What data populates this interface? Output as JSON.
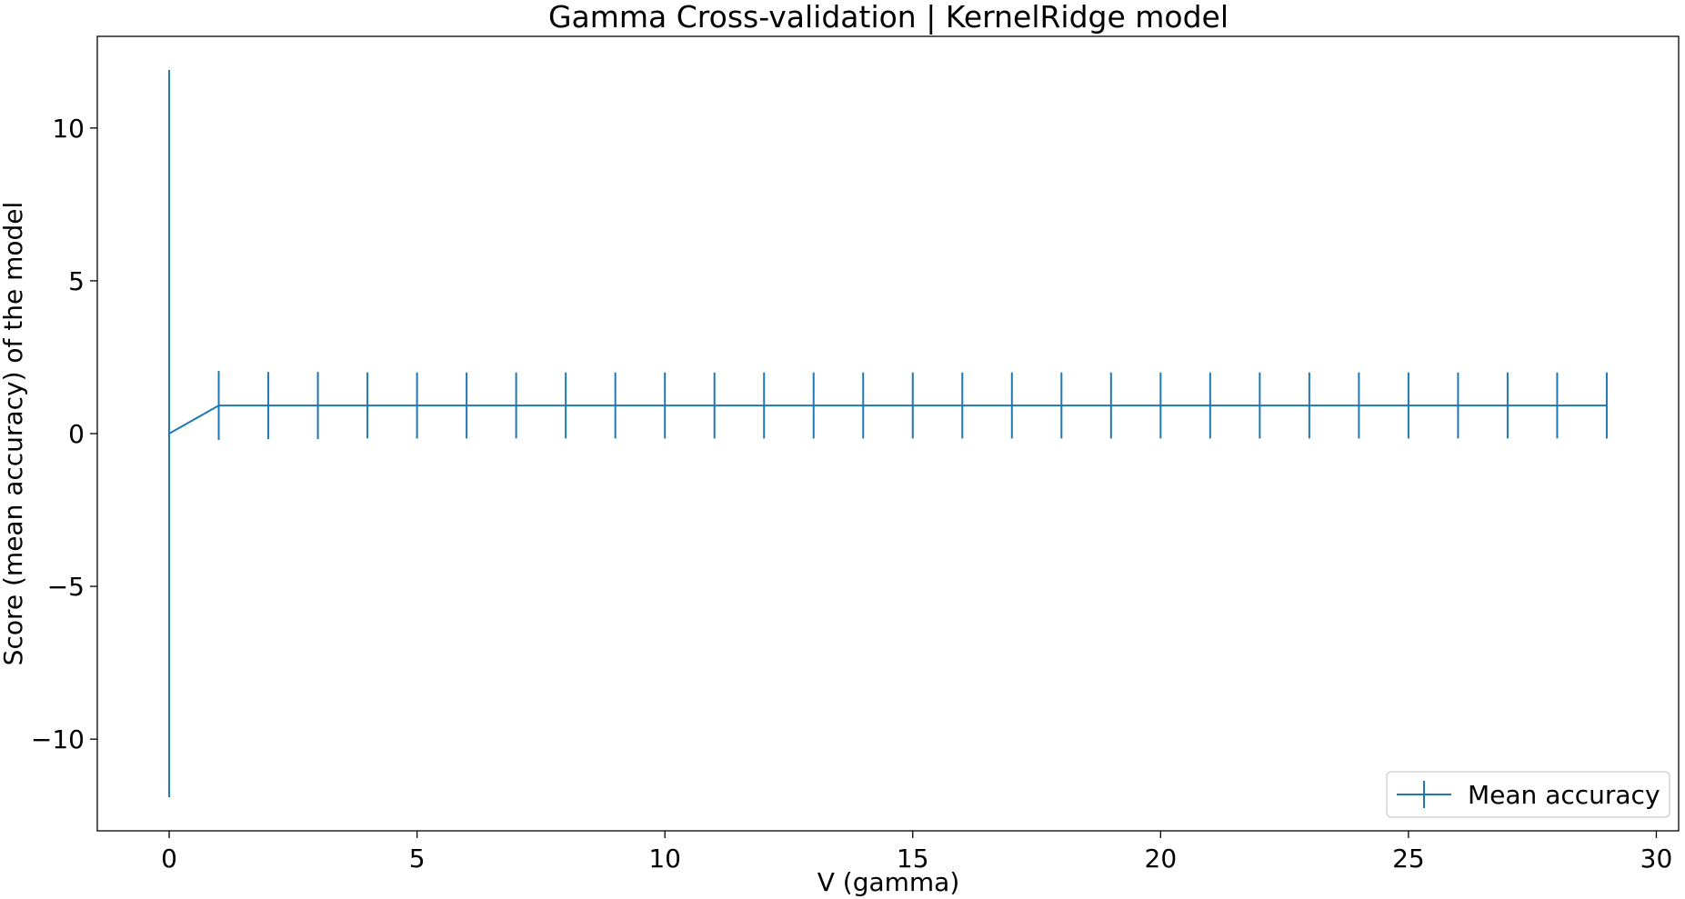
{
  "chart_data": {
    "type": "line",
    "title": "Gamma Cross-validation | KernelRidge model",
    "xlabel": "V (gamma)",
    "ylabel": "Score (mean accuracy) of the model",
    "xlim": [
      -1.45,
      30.45
    ],
    "ylim": [
      -13.0,
      13.0
    ],
    "x_ticks": [
      0,
      5,
      10,
      15,
      20,
      25,
      30
    ],
    "x_tick_labels": [
      "0",
      "5",
      "10",
      "15",
      "20",
      "25",
      "30"
    ],
    "y_ticks": [
      -10,
      -5,
      0,
      5,
      10
    ],
    "y_tick_labels": [
      "−10",
      "−5",
      "0",
      "5",
      "10"
    ],
    "grid": false,
    "legend_position": "lower-right",
    "series": [
      {
        "name": "Mean accuracy",
        "color": "#1f77b4",
        "marker": "errorbar",
        "x": [
          0,
          1,
          2,
          3,
          4,
          5,
          6,
          7,
          8,
          9,
          10,
          11,
          12,
          13,
          14,
          15,
          16,
          17,
          18,
          19,
          20,
          21,
          22,
          23,
          24,
          25,
          26,
          27,
          28,
          29
        ],
        "y": [
          0.0,
          0.92,
          0.92,
          0.92,
          0.92,
          0.92,
          0.92,
          0.92,
          0.92,
          0.92,
          0.92,
          0.92,
          0.92,
          0.92,
          0.92,
          0.92,
          0.92,
          0.92,
          0.92,
          0.92,
          0.92,
          0.92,
          0.92,
          0.92,
          0.92,
          0.92,
          0.92,
          0.92,
          0.92,
          0.92
        ],
        "yerr": [
          11.9,
          1.13,
          1.1,
          1.1,
          1.08,
          1.08,
          1.08,
          1.08,
          1.08,
          1.08,
          1.08,
          1.08,
          1.08,
          1.08,
          1.08,
          1.08,
          1.08,
          1.08,
          1.08,
          1.08,
          1.08,
          1.08,
          1.08,
          1.08,
          1.08,
          1.08,
          1.08,
          1.08,
          1.08,
          1.08
        ]
      }
    ]
  }
}
